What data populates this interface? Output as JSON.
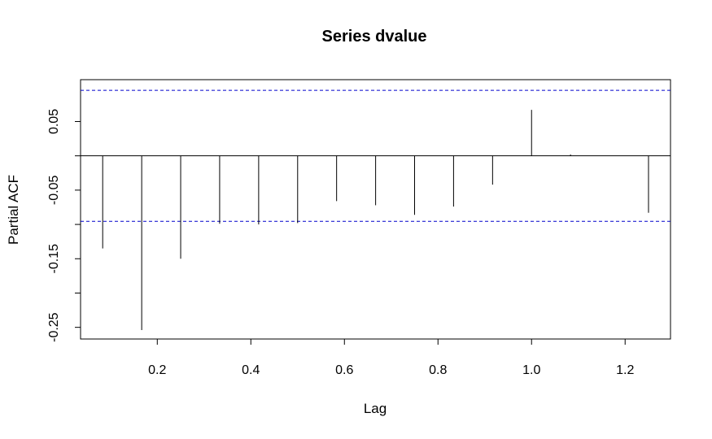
{
  "chart_data": {
    "type": "bar",
    "title": "Series  dvalue",
    "xlabel": "Lag",
    "ylabel": "Partial ACF",
    "x": [
      0.0833,
      0.1667,
      0.25,
      0.3333,
      0.4167,
      0.5,
      0.5833,
      0.6667,
      0.75,
      0.8333,
      0.9167,
      1.0,
      1.0833,
      1.1667,
      1.25
    ],
    "values": [
      -0.135,
      -0.254,
      -0.15,
      -0.099,
      -0.1,
      -0.098,
      -0.066,
      -0.072,
      -0.086,
      -0.074,
      -0.042,
      0.067,
      0.002,
      0.0,
      -0.083
    ],
    "confidence_bound": 0.0955,
    "xlim": [
      0.036,
      1.297
    ],
    "ylim": [
      -0.267,
      0.111
    ],
    "x_ticks": [
      0.2,
      0.4,
      0.6,
      0.8,
      1.0,
      1.2
    ],
    "x_tick_labels": [
      "0.2",
      "0.4",
      "0.6",
      "0.8",
      "1.0",
      "1.2"
    ],
    "y_ticks": [
      0.05,
      0.0,
      -0.05,
      -0.1,
      -0.15,
      -0.2,
      -0.25
    ],
    "y_tick_labels": [
      "0.05",
      "",
      "-0.05",
      "",
      "-0.15",
      "",
      "-0.25"
    ],
    "zero_line": true,
    "grid": false,
    "colors": {
      "bars": "#000000",
      "confidence": "#0000cc",
      "frame": "#000000"
    }
  }
}
